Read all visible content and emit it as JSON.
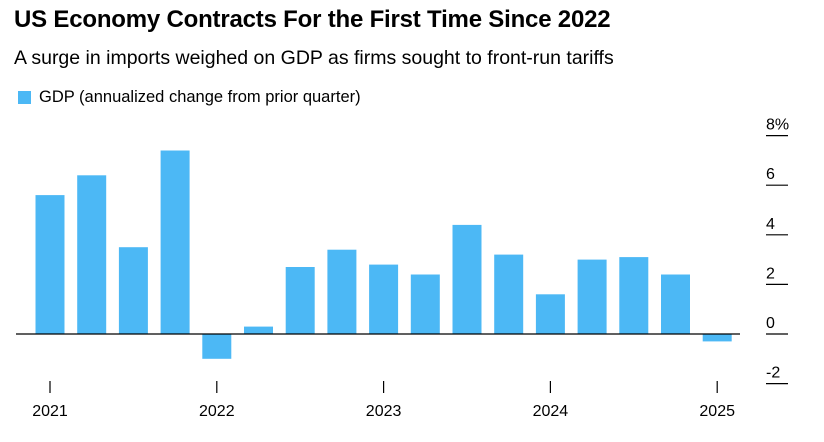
{
  "title": "US Economy Contracts For the First Time Since 2022",
  "subtitle": "A surge in imports weighed on GDP as firms sought to front-run tariffs",
  "colors": {
    "bar": "#4cb8f5",
    "axis": "#000000"
  },
  "chart_data": {
    "type": "bar",
    "title": "US Economy Contracts For the First Time Since 2022",
    "subtitle": "A surge in imports weighed on GDP as firms sought to front-run tariffs",
    "categories": [
      "2021 Q1",
      "2021 Q2",
      "2021 Q3",
      "2021 Q4",
      "2022 Q1",
      "2022 Q2",
      "2022 Q3",
      "2022 Q4",
      "2023 Q1",
      "2023 Q2",
      "2023 Q3",
      "2023 Q4",
      "2024 Q1",
      "2024 Q2",
      "2024 Q3",
      "2024 Q4",
      "2025 Q1"
    ],
    "series": [
      {
        "name": "GDP (annualized change from prior quarter)",
        "values": [
          5.6,
          6.4,
          3.5,
          7.4,
          -1.0,
          0.3,
          2.7,
          3.4,
          2.8,
          2.4,
          4.4,
          3.2,
          1.6,
          3.0,
          3.1,
          2.4,
          -0.3
        ]
      }
    ],
    "y_ticks": [
      -2,
      0,
      2,
      4,
      6,
      8
    ],
    "y_tick_labels": [
      "-2",
      "0",
      "2",
      "4",
      "6",
      "8%"
    ],
    "x_tick_labels": [
      "2021",
      "2022",
      "2023",
      "2024",
      "2025"
    ],
    "ylim": [
      -2.5,
      8.5
    ],
    "y_axis_position": "right",
    "legend_position": "top-left",
    "grid": false
  }
}
